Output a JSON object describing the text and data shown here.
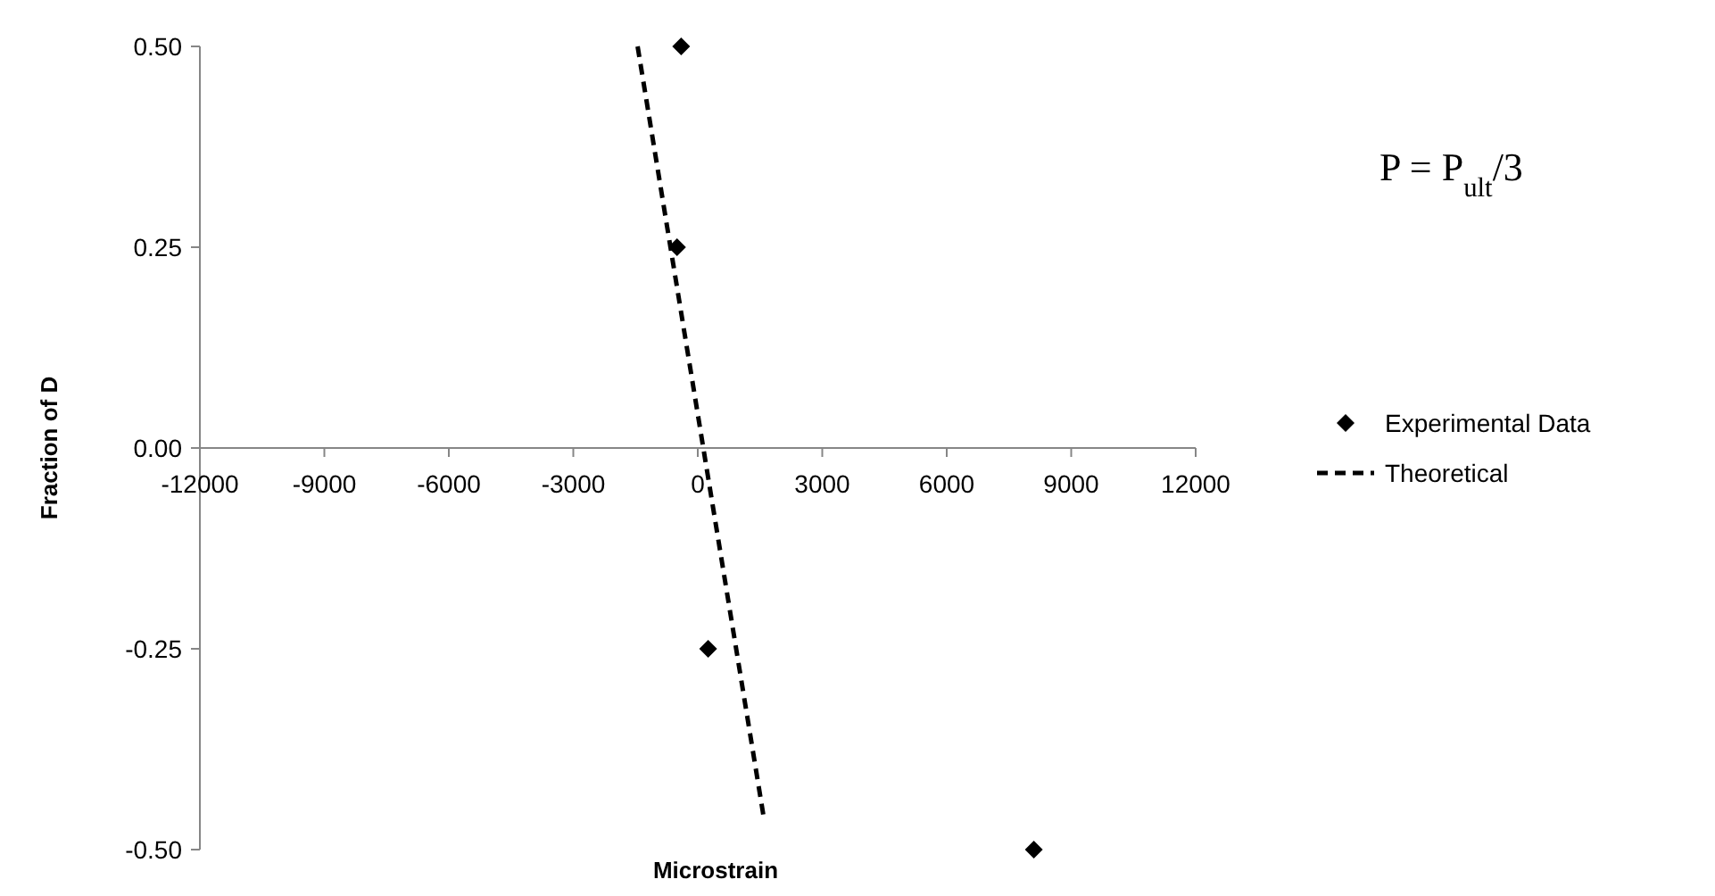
{
  "chart_data": {
    "type": "scatter",
    "xlabel": "Microstrain",
    "ylabel": "Fraction of D",
    "xlim": [
      -12000,
      12000
    ],
    "xticks": [
      -12000,
      -9000,
      -6000,
      -3000,
      0,
      3000,
      6000,
      9000,
      12000
    ],
    "ylim": [
      -0.5,
      0.5
    ],
    "yticks": [
      {
        "value": -0.5,
        "label": "-0.50"
      },
      {
        "value": -0.25,
        "label": "-0.25"
      },
      {
        "value": 0,
        "label": "0.00"
      },
      {
        "value": 0.25,
        "label": "0.25"
      },
      {
        "value": 0.5,
        "label": "0.50"
      }
    ],
    "grid": false,
    "legend": "right",
    "annotations": [
      "P = P$_{ult}$/3"
    ],
    "series": [
      {
        "name": "Experimental Data",
        "marker": "diamond",
        "color": "#000000",
        "x": [
          -400,
          -500,
          250,
          8100
        ],
        "values": [
          0.5,
          0.25,
          -0.25,
          -0.5
        ]
      },
      {
        "name": "Theoretical",
        "type": "line",
        "line_style": "dashed",
        "marker": "none",
        "color": "#000000",
        "x": [
          -1450,
          1590
        ],
        "values": [
          0.5,
          -0.46
        ]
      }
    ]
  }
}
